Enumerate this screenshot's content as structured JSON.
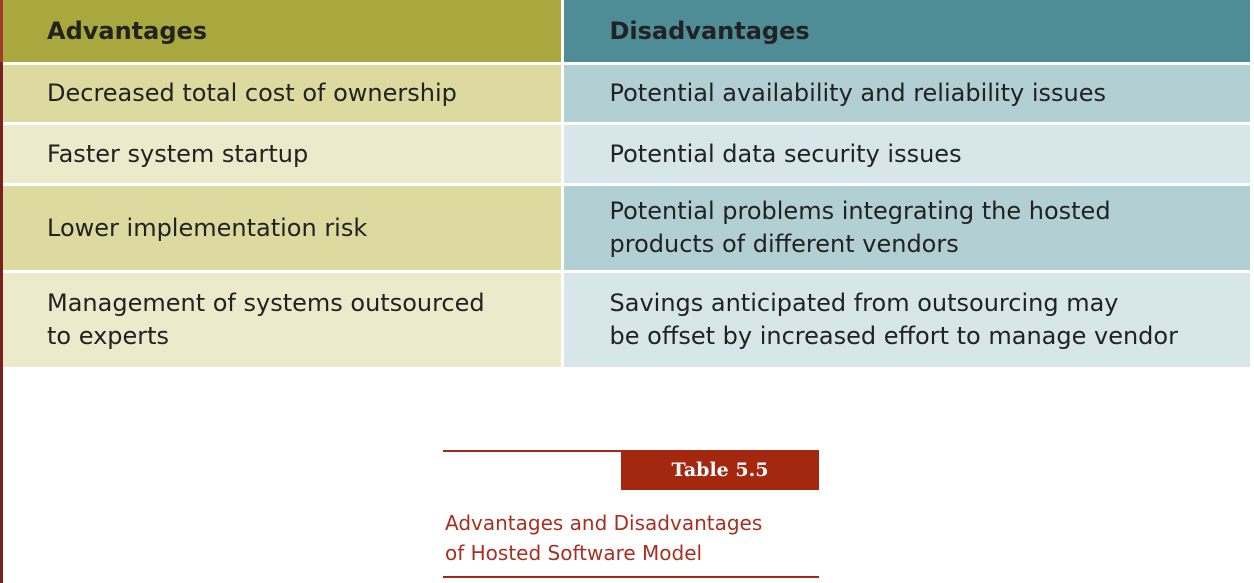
{
  "table": {
    "headers": [
      "Advantages",
      "Disadvantages"
    ],
    "rows": [
      [
        "Decreased total cost of ownership",
        "Potential availability and reliability issues"
      ],
      [
        "Faster system startup",
        "Potential data security issues"
      ],
      [
        "Lower implementation risk",
        "Potential problems integrating the hosted\nproducts of different vendors"
      ],
      [
        "Management of systems outsourced\nto experts",
        "Savings anticipated from outsourcing may\nbe offset by increased effort to manage vendor"
      ]
    ]
  },
  "caption": {
    "label": "Table 5.5",
    "text": "Advantages and Disadvantages\nof Hosted Software Model"
  },
  "colors": {
    "advantages_header": "#a8a83f",
    "disadvantages_header": "#4f8d96",
    "caption_accent": "#a4270f"
  }
}
